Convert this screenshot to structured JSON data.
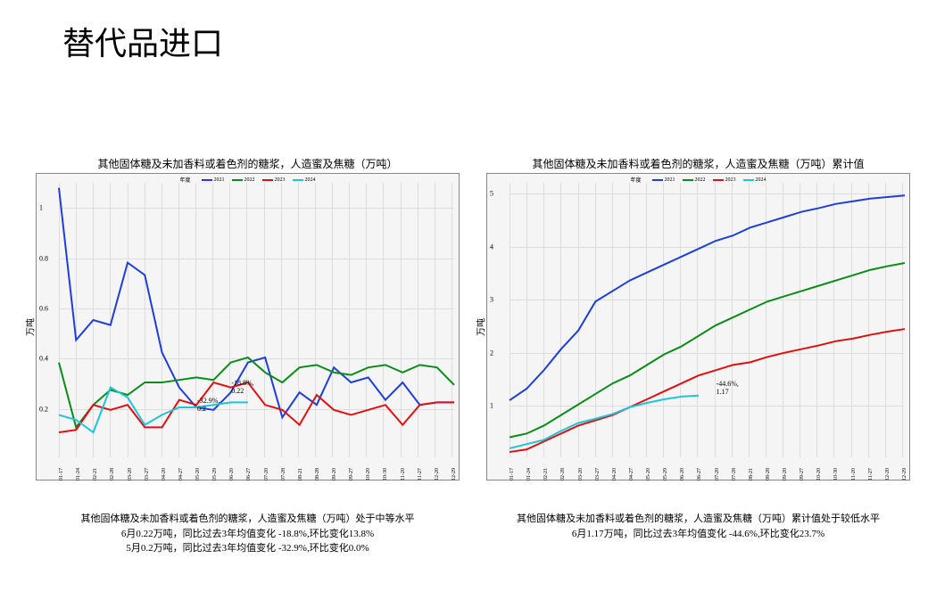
{
  "page_title": "替代品进口",
  "legend_title": "年度",
  "series_labels": [
    "2021",
    "2022",
    "2023",
    "2024"
  ],
  "series_colors": [
    "#1f3fd6",
    "#0a8c1a",
    "#e01010",
    "#1fc4d6"
  ],
  "x_categories": [
    "01-17",
    "01-24",
    "02-21",
    "02-28",
    "03-20",
    "03-27",
    "04-20",
    "04-27",
    "05-20",
    "05-29",
    "06-20",
    "06-27",
    "07-20",
    "07-28",
    "08-21",
    "08-28",
    "09-20",
    "09-27",
    "10-20",
    "10-30",
    "11-20",
    "11-27",
    "12-20",
    "12-29"
  ],
  "chart_left": {
    "title": "其他固体糖及未加香料或着色剂的糖浆，人造蜜及焦糖（万吨）",
    "ylabel": "万吨",
    "ylim": [
      0,
      1.1
    ],
    "yticks": [
      0.2,
      0.4,
      0.6,
      0.8,
      1.0
    ],
    "background": "#f5f5f5",
    "grid_color": "#dddddd",
    "series": {
      "2021": [
        1.08,
        0.47,
        0.55,
        0.53,
        0.78,
        0.73,
        0.42,
        0.28,
        0.2,
        0.19,
        0.26,
        0.38,
        0.4,
        0.16,
        0.26,
        0.21,
        0.36,
        0.3,
        0.32,
        0.23,
        0.3,
        0.21,
        0.22,
        0.22
      ],
      "2022": [
        0.38,
        0.12,
        0.21,
        0.27,
        0.25,
        0.3,
        0.3,
        0.31,
        0.32,
        0.31,
        0.38,
        0.4,
        0.34,
        0.3,
        0.36,
        0.37,
        0.34,
        0.33,
        0.36,
        0.37,
        0.34,
        0.37,
        0.36,
        0.29
      ],
      "2023": [
        0.1,
        0.11,
        0.21,
        0.19,
        0.21,
        0.12,
        0.12,
        0.23,
        0.21,
        0.3,
        0.28,
        0.3,
        0.21,
        0.19,
        0.13,
        0.25,
        0.19,
        0.17,
        0.19,
        0.21,
        0.13,
        0.21,
        0.22,
        0.22
      ],
      "2024": [
        0.17,
        0.15,
        0.1,
        0.28,
        0.24,
        0.13,
        0.17,
        0.2,
        0.2,
        0.21,
        0.22,
        0.22
      ]
    },
    "annotations": [
      {
        "text": "-32.9%,\n0.2",
        "x_idx": 8,
        "y": 0.2
      },
      {
        "text": "-18.8%,\n0.22",
        "x_idx": 10,
        "y": 0.27
      }
    ],
    "caption": "其他固体糖及未加香料或着色剂的糖浆，人造蜜及焦糖（万吨）处于中等水平\n6月0.22万吨，同比过去3年均值变化 -18.8%,环比变化13.8%\n5月0.2万吨，同比过去3年均值变化 -32.9%,环比变化0.0%"
  },
  "chart_right": {
    "title": "其他固体糖及未加香料或着色剂的糖浆，人造蜜及焦糖（万吨）累计值",
    "ylabel": "万吨",
    "ylim": [
      0,
      5.2
    ],
    "yticks": [
      1,
      2,
      3,
      4,
      5
    ],
    "background": "#f5f5f5",
    "grid_color": "#dddddd",
    "series": {
      "2021": [
        1.08,
        1.3,
        1.65,
        2.05,
        2.4,
        2.95,
        3.15,
        3.35,
        3.5,
        3.65,
        3.8,
        3.95,
        4.1,
        4.2,
        4.35,
        4.45,
        4.55,
        4.65,
        4.72,
        4.8,
        4.85,
        4.9,
        4.93,
        4.96
      ],
      "2022": [
        0.38,
        0.45,
        0.6,
        0.8,
        1.0,
        1.2,
        1.4,
        1.55,
        1.75,
        1.95,
        2.1,
        2.3,
        2.5,
        2.65,
        2.8,
        2.95,
        3.05,
        3.15,
        3.25,
        3.35,
        3.45,
        3.55,
        3.62,
        3.68
      ],
      "2023": [
        0.1,
        0.15,
        0.3,
        0.45,
        0.6,
        0.7,
        0.8,
        0.95,
        1.1,
        1.25,
        1.4,
        1.55,
        1.65,
        1.75,
        1.8,
        1.9,
        1.98,
        2.05,
        2.12,
        2.2,
        2.25,
        2.32,
        2.38,
        2.43
      ],
      "2024": [
        0.17,
        0.25,
        0.33,
        0.5,
        0.65,
        0.73,
        0.82,
        0.95,
        1.03,
        1.1,
        1.15,
        1.17
      ]
    },
    "annotations": [
      {
        "text": "-44.6%,\n1.17",
        "x_idx": 12,
        "y": 1.25
      }
    ],
    "caption": "其他固体糖及未加香料或着色剂的糖浆，人造蜜及焦糖（万吨）累计值处于较低水平\n6月1.17万吨，同比过去3年均值变化 -44.6%,环比变化23.7%"
  }
}
